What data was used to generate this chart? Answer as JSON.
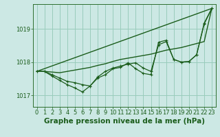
{
  "background_color": "#cce8e4",
  "plot_bg_color": "#cce8e4",
  "grid_color": "#99ccbb",
  "line_color": "#1a5c1a",
  "title": "Graphe pression niveau de la mer (hPa)",
  "ylim": [
    1016.65,
    1019.75
  ],
  "yticks": [
    1017,
    1018,
    1019
  ],
  "xlim": [
    -0.5,
    23.5
  ],
  "xticks": [
    0,
    1,
    2,
    3,
    4,
    5,
    6,
    7,
    8,
    9,
    10,
    11,
    12,
    13,
    14,
    15,
    16,
    17,
    18,
    19,
    20,
    21,
    22,
    23
  ],
  "series": [
    {
      "name": "line_trend_straight",
      "x": [
        0,
        23
      ],
      "y": [
        1017.72,
        1019.62
      ],
      "marker": false,
      "linewidth": 1.0
    },
    {
      "name": "line_smooth",
      "x": [
        0,
        1,
        2,
        3,
        4,
        5,
        6,
        7,
        8,
        9,
        10,
        11,
        12,
        13,
        14,
        15,
        16,
        17,
        18,
        19,
        20,
        21,
        22,
        23
      ],
      "y": [
        1017.72,
        1017.72,
        1017.7,
        1017.68,
        1017.72,
        1017.76,
        1017.8,
        1017.84,
        1017.9,
        1017.95,
        1018.02,
        1018.08,
        1018.12,
        1018.16,
        1018.2,
        1018.24,
        1018.3,
        1018.36,
        1018.4,
        1018.44,
        1018.5,
        1018.56,
        1018.62,
        1019.62
      ],
      "marker": false,
      "linewidth": 1.0
    },
    {
      "name": "line_hourly1",
      "x": [
        0,
        1,
        2,
        3,
        4,
        5,
        6,
        7,
        8,
        9,
        10,
        11,
        12,
        13,
        14,
        15,
        16,
        17,
        18,
        19,
        20,
        21,
        22,
        23
      ],
      "y": [
        1017.72,
        1017.72,
        1017.62,
        1017.52,
        1017.42,
        1017.38,
        1017.32,
        1017.28,
        1017.55,
        1017.72,
        1017.82,
        1017.88,
        1017.94,
        1017.98,
        1017.82,
        1017.72,
        1018.52,
        1018.62,
        1018.08,
        1018.0,
        1018.02,
        1018.22,
        1019.15,
        1019.62
      ],
      "marker": true,
      "linewidth": 0.9
    },
    {
      "name": "line_hourly2",
      "x": [
        0,
        1,
        2,
        3,
        4,
        5,
        6,
        7,
        8,
        9,
        10,
        11,
        12,
        13,
        14,
        15,
        16,
        17,
        18,
        19,
        20,
        21,
        22,
        23
      ],
      "y": [
        1017.72,
        1017.72,
        1017.58,
        1017.45,
        1017.32,
        1017.22,
        1017.1,
        1017.28,
        1017.52,
        1017.62,
        1017.8,
        1017.84,
        1017.98,
        1017.8,
        1017.66,
        1017.62,
        1018.6,
        1018.66,
        1018.08,
        1018.0,
        1018.02,
        1018.22,
        1019.18,
        1019.62
      ],
      "marker": true,
      "linewidth": 0.9
    }
  ],
  "title_fontsize": 7.5,
  "tick_fontsize": 6.0,
  "title_color": "#1a5c1a",
  "tick_color": "#1a5c1a",
  "spine_color": "#2d6e2d"
}
